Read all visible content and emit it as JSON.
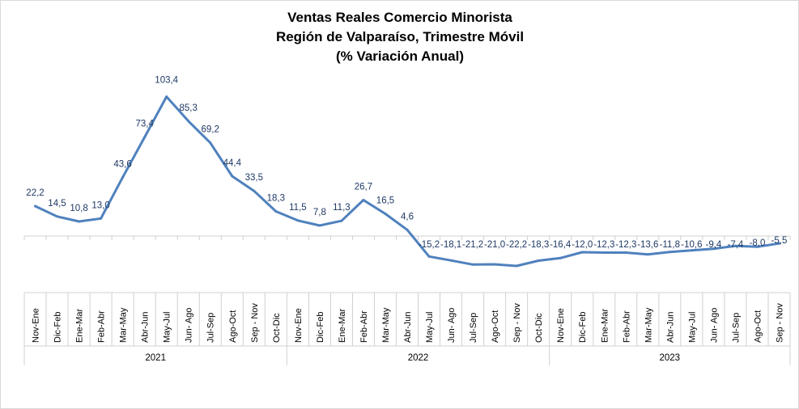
{
  "chart_data": {
    "type": "line",
    "title": [
      "Ventas Reales Comercio Minorista",
      "Región de Valparaíso, Trimestre Móvil",
      "(% Variación Anual)"
    ],
    "xlabel": "",
    "ylabel": "",
    "grid": false,
    "legend": "none",
    "line_color": "#4f81bd",
    "label_color": "#1f3864",
    "categories": [
      "Nov-Ene",
      "Dic-Feb",
      "Ene-Mar",
      "Feb-Abr",
      "Mar-May",
      "Abr-Jun",
      "May-Jul",
      "Jun- Ago",
      "Jul-Sep",
      "Ago-Oct",
      "Sep - Nov",
      "Oct-Dic",
      "Nov-Ene",
      "Dic-Feb",
      "Ene-Mar",
      "Feb-Abr",
      "Mar-May",
      "Abr-Jun",
      "May-Jul",
      "Jun- Ago",
      "Jul-Sep",
      "Ago-Oct",
      "Sep - Nov",
      "Oct-Dic",
      "Nov-Ene",
      "Dic-Feb",
      "Ene-Mar",
      "Feb-Abr",
      "Mar-May",
      "Abr-Jun",
      "May-Jul",
      "Jun- Ago",
      "Jul-Sep",
      "Ago-Oct",
      "Sep - Nov"
    ],
    "values": [
      22.2,
      14.5,
      10.8,
      13.0,
      43.6,
      73.4,
      103.4,
      85.3,
      69.2,
      44.4,
      33.5,
      18.3,
      11.5,
      7.8,
      11.3,
      26.7,
      16.5,
      4.6,
      -15.2,
      -18.1,
      -21.2,
      -21.0,
      -22.2,
      -18.3,
      -16.4,
      -12.0,
      -12.3,
      -12.3,
      -13.6,
      -11.8,
      -10.6,
      -9.4,
      -7.4,
      -8.0,
      -5.5
    ],
    "data_labels": [
      "22,2",
      "14,5",
      "10,8",
      "13,0",
      "43,6",
      "73,4",
      "103,4",
      "85,3",
      "69,2",
      "44,4",
      "33,5",
      "18,3",
      "11,5",
      "7,8",
      "11,3",
      "26,7",
      "16,5",
      "4,6",
      "-15,2",
      "-18,1",
      "-21,2",
      "-21,0",
      "-22,2",
      "-18,3",
      "-16,4",
      "-12,0",
      "-12,3",
      "-12,3",
      "-13,6",
      "-11,8",
      "-10,6",
      "-9,4",
      "-7,4",
      "-8,0",
      "-5,5"
    ],
    "groups": [
      {
        "label": "2021",
        "start": 0,
        "count": 12
      },
      {
        "label": "2022",
        "start": 12,
        "count": 12
      },
      {
        "label": "2023",
        "start": 24,
        "count": 11
      }
    ],
    "ylim": [
      -40,
      110
    ]
  }
}
